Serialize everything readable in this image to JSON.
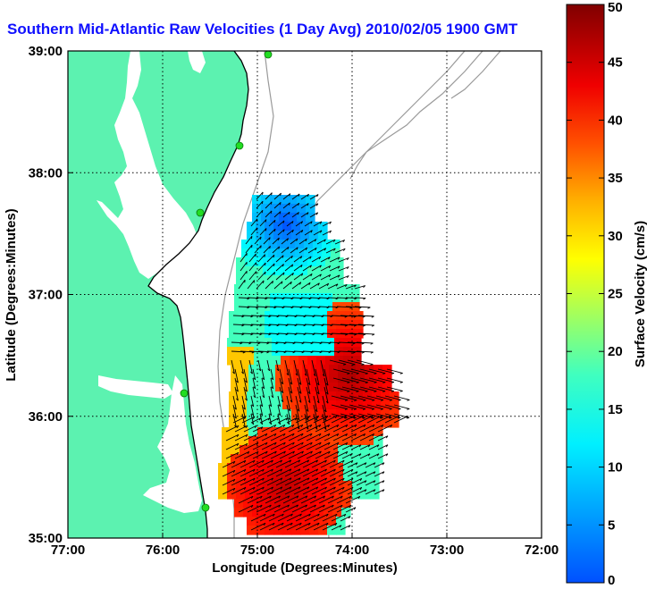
{
  "title": "Southern Mid-Atlantic Raw Velocities (1 Day Avg) 2010/02/05 1900 GMT",
  "x_axis": {
    "label": "Longitude (Degrees:Minutes)",
    "ticks": [
      "77:00",
      "76:00",
      "75:00",
      "74:00",
      "73:00",
      "72:00"
    ]
  },
  "y_axis": {
    "label": "Latitude (Degrees:Minutes)",
    "ticks": [
      "39:00",
      "38:00",
      "37:00",
      "36:00",
      "35:00"
    ]
  },
  "colorbar": {
    "label": "Surface Velocity (cm/s)",
    "ticks": [
      "50",
      "45",
      "40",
      "35",
      "30",
      "25",
      "20",
      "15",
      "10",
      "5",
      "0"
    ],
    "min": 0,
    "max": 50
  },
  "map": {
    "lon_range": [
      -77,
      -72
    ],
    "lat_range": [
      35,
      39
    ],
    "grid": true,
    "land_color": "#5cf2b0",
    "water_color": "#ffffff",
    "coastline_color": "#000000",
    "bathymetry_color": "#9a9a9a",
    "station_color": "#22dd22"
  }
}
